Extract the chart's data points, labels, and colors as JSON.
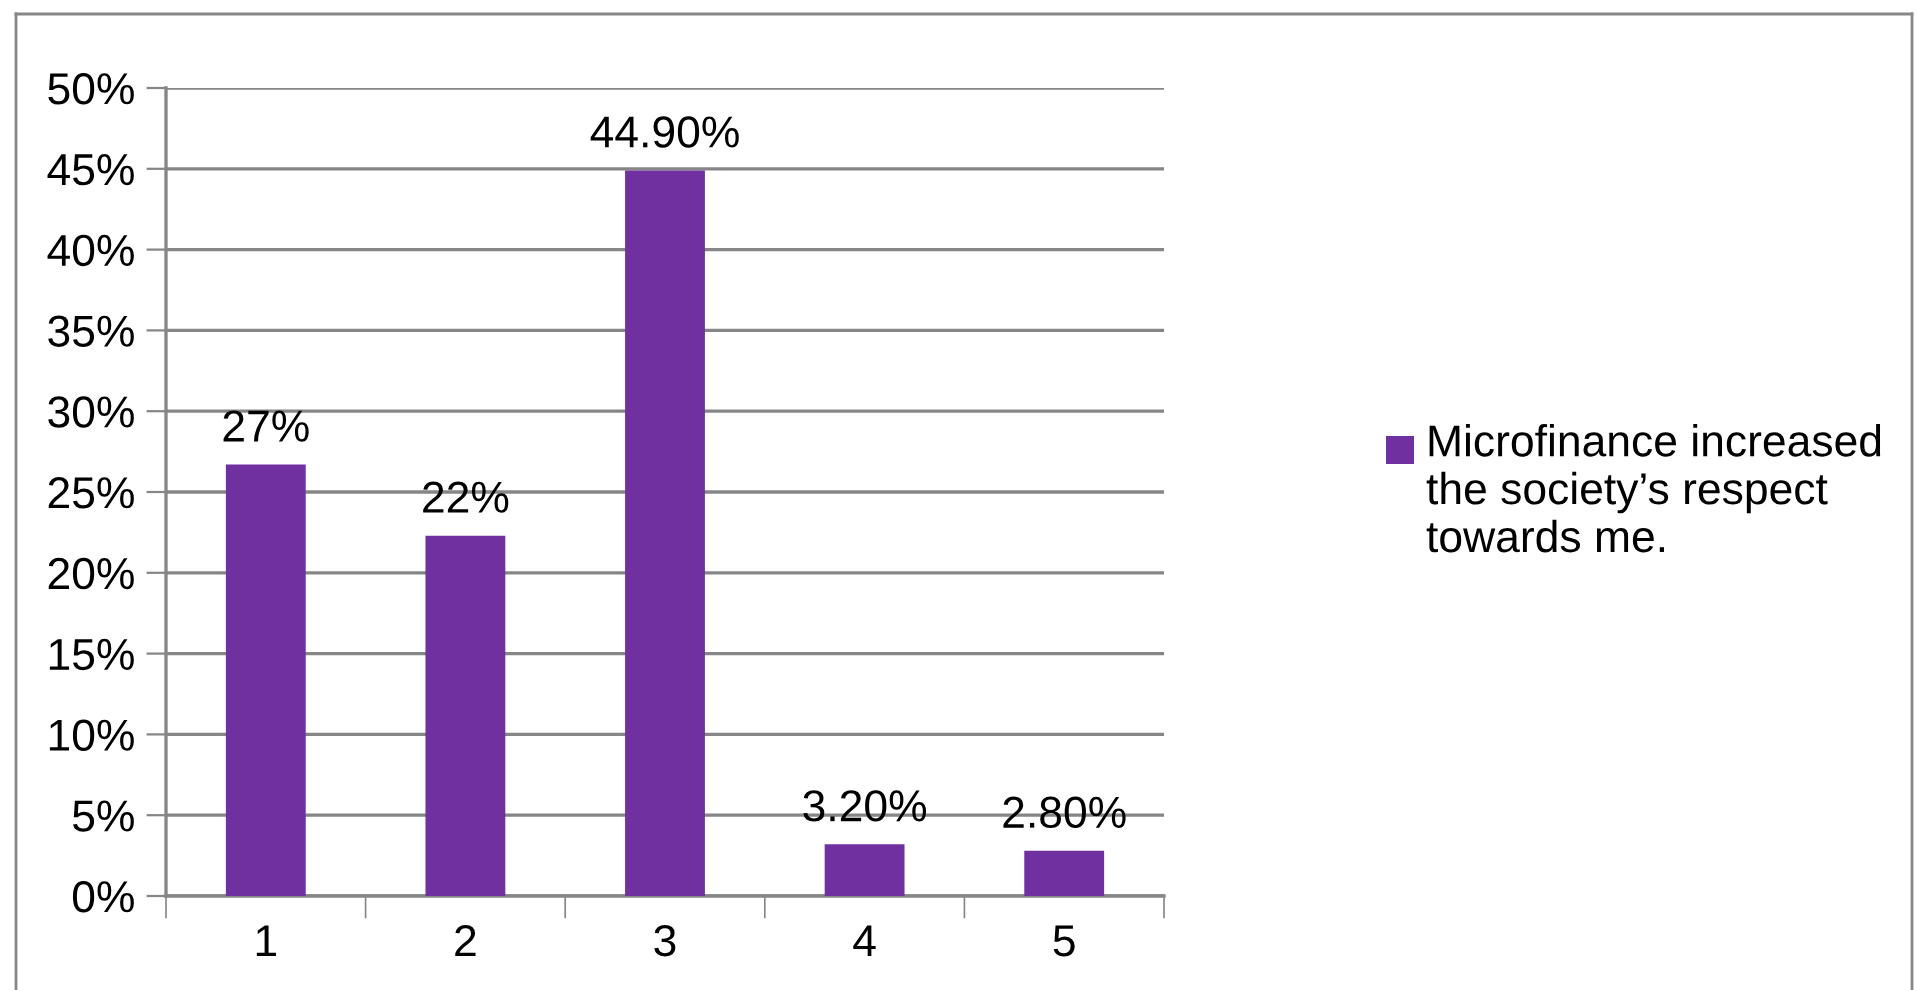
{
  "chart_data": {
    "type": "bar",
    "categories": [
      "1",
      "2",
      "3",
      "4",
      "5"
    ],
    "series": [
      {
        "name": "Microfinance increased the society’s respect towards me.",
        "color": "#7030a0",
        "values": [
          26.7,
          22.3,
          44.9,
          3.2,
          2.8
        ],
        "value_labels": [
          "27%",
          "22%",
          "44.90%",
          "3.20%",
          "2.80%"
        ]
      }
    ],
    "ylim": [
      0,
      50
    ],
    "yticks": [
      {
        "value": 0,
        "label": "0%"
      },
      {
        "value": 5,
        "label": "5%"
      },
      {
        "value": 10,
        "label": "10%"
      },
      {
        "value": 15,
        "label": "15%"
      },
      {
        "value": 20,
        "label": "20%"
      },
      {
        "value": 25,
        "label": "25%"
      },
      {
        "value": 30,
        "label": "30%"
      },
      {
        "value": 35,
        "label": "35%"
      },
      {
        "value": 40,
        "label": "40%"
      },
      {
        "value": 45,
        "label": "45%"
      },
      {
        "value": 50,
        "label": "50%"
      }
    ],
    "grid": "y",
    "legend": "right"
  }
}
